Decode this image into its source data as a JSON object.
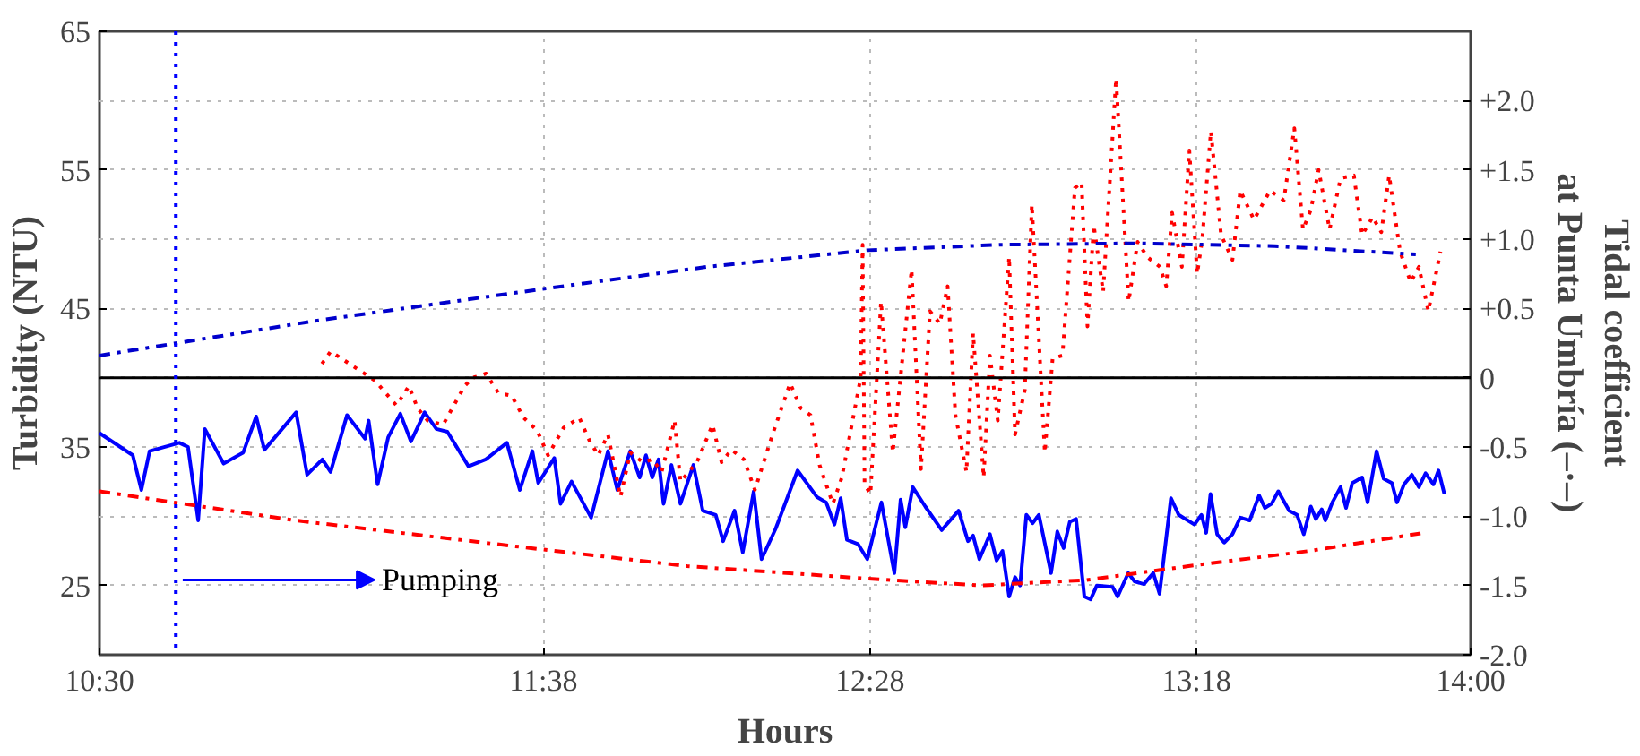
{
  "chart_data": {
    "type": "line",
    "xlabel": "Hours",
    "ylabel": "Turbidity (NTU)",
    "y2label": "Tidal coefficient\nat Punta Umbría (–·–)",
    "xlim": [
      10.5,
      14.0
    ],
    "xticks": [
      {
        "value": 10.5,
        "label": "10:30"
      },
      {
        "value": 11.6333,
        "label": "11:38"
      },
      {
        "value": 12.4667,
        "label": "12:28"
      },
      {
        "value": 13.3,
        "label": "13:18"
      },
      {
        "value": 14.0,
        "label": "14:00"
      }
    ],
    "ylim": [
      20,
      65
    ],
    "yticks": [
      25,
      35,
      45,
      55,
      65
    ],
    "y2lim": [
      -2.0,
      2.5
    ],
    "y2ticks": [
      {
        "value": 2.0,
        "label": "+2.0"
      },
      {
        "value": 1.5,
        "label": "+1.5"
      },
      {
        "value": 1.0,
        "label": "+1.0"
      },
      {
        "value": 0.5,
        "label": "+0.5"
      },
      0,
      -0.5,
      {
        "value": -1.0,
        "label": "-1.0"
      },
      -1.5,
      {
        "value": -2.0,
        "label": "-2.0"
      }
    ],
    "grid": true,
    "ref_lines": [
      {
        "axis": "y2",
        "value": 0,
        "color": "#000000",
        "line_style": "solid"
      },
      {
        "axis": "x",
        "value": 10.695,
        "label": "Pumping",
        "color": "#0000ff",
        "line_style": "dotted"
      }
    ],
    "series": [
      {
        "color": "#0000ff",
        "line_style": "solid",
        "x": [
          10.5,
          10.585,
          10.607,
          10.628,
          10.704,
          10.726,
          10.752,
          10.769,
          10.817,
          10.867,
          10.9,
          10.921,
          11.002,
          11.03,
          11.069,
          11.09,
          11.132,
          11.178,
          11.187,
          11.21,
          11.237,
          11.268,
          11.295,
          11.33,
          11.36,
          11.388,
          11.442,
          11.486,
          11.54,
          11.573,
          11.605,
          11.62,
          11.661,
          11.677,
          11.705,
          11.755,
          11.798,
          11.822,
          11.855,
          11.879,
          11.895,
          11.911,
          11.927,
          11.94,
          11.96,
          11.983,
          12.016,
          12.04,
          12.073,
          12.092,
          12.121,
          12.142,
          12.17,
          12.19,
          12.226,
          12.282,
          12.331,
          12.355,
          12.376,
          12.392,
          12.408,
          12.436,
          12.46,
          12.496,
          12.529,
          12.545,
          12.557,
          12.576,
          12.608,
          12.65,
          12.693,
          12.717,
          12.73,
          12.746,
          12.773,
          12.79,
          12.805,
          12.822,
          12.837,
          12.85,
          12.866,
          12.882,
          12.898,
          12.929,
          12.945,
          12.961,
          12.977,
          12.993,
          13.014,
          13.03,
          13.046,
          13.086,
          13.099,
          13.126,
          13.142,
          13.166,
          13.19,
          13.206,
          13.235,
          13.255,
          13.295,
          13.313,
          13.325,
          13.336,
          13.353,
          13.371,
          13.392,
          13.412,
          13.436,
          13.46,
          13.475,
          13.492,
          13.509,
          13.537,
          13.557,
          13.574,
          13.592,
          13.605,
          13.62,
          13.629,
          13.647,
          13.668,
          13.682,
          13.698,
          13.723,
          13.737,
          13.76,
          13.778,
          13.799,
          13.812,
          13.83,
          13.85,
          13.868,
          13.885,
          13.905,
          13.918,
          13.933
        ],
        "values": [
          36.0,
          34.4,
          31.9,
          34.7,
          35.3,
          35.0,
          29.7,
          36.3,
          33.8,
          34.6,
          37.2,
          34.8,
          37.5,
          33.0,
          34.1,
          33.2,
          37.3,
          35.6,
          36.9,
          32.3,
          35.7,
          37.4,
          35.4,
          37.5,
          36.3,
          36.1,
          33.6,
          34.1,
          35.3,
          31.9,
          34.7,
          32.4,
          34.2,
          30.9,
          32.5,
          29.9,
          34.7,
          31.9,
          34.7,
          32.8,
          34.4,
          32.8,
          34.1,
          30.9,
          33.7,
          30.9,
          33.7,
          30.4,
          30.1,
          28.2,
          30.4,
          27.4,
          31.8,
          26.9,
          29.1,
          33.3,
          31.4,
          31.0,
          29.4,
          31.3,
          28.3,
          28.0,
          26.9,
          31.0,
          25.9,
          31.2,
          29.2,
          32.1,
          30.7,
          29.0,
          30.4,
          28.2,
          28.6,
          26.9,
          28.7,
          26.8,
          27.5,
          24.2,
          25.6,
          25.0,
          30.1,
          29.5,
          30.1,
          25.9,
          28.9,
          27.7,
          29.6,
          29.8,
          24.2,
          24.0,
          25.0,
          24.9,
          24.2,
          25.9,
          25.3,
          25.1,
          25.9,
          24.4,
          31.3,
          30.1,
          29.4,
          30.1,
          28.8,
          31.6,
          28.7,
          28.1,
          28.7,
          29.9,
          29.7,
          31.5,
          30.6,
          30.9,
          31.8,
          30.4,
          30.1,
          28.7,
          30.7,
          29.8,
          30.5,
          29.7,
          31.0,
          32.1,
          30.6,
          32.4,
          32.8,
          31.0,
          34.7,
          32.7,
          32.4,
          31.0,
          32.3,
          33.0,
          32.1,
          33.1,
          32.3,
          33.3,
          31.6
        ]
      },
      {
        "color": "#ff0000",
        "line_style": "dotted",
        "x": [
          11.068,
          11.09,
          11.203,
          11.258,
          11.29,
          11.312,
          11.338,
          11.377,
          11.432,
          11.453,
          11.487,
          11.518,
          11.552,
          11.583,
          11.617,
          11.645,
          11.685,
          11.725,
          11.75,
          11.773,
          11.798,
          11.83,
          11.855,
          11.887,
          11.912,
          11.935,
          11.968,
          11.983,
          12.025,
          12.065,
          12.088,
          12.113,
          12.145,
          12.173,
          12.218,
          12.263,
          12.29,
          12.315,
          12.338,
          12.372,
          12.395,
          12.443,
          12.448,
          12.453,
          12.468,
          12.495,
          12.525,
          12.573,
          12.597,
          12.62,
          12.645,
          12.665,
          12.685,
          12.713,
          12.73,
          12.757,
          12.773,
          12.793,
          12.822,
          12.837,
          12.862,
          12.88,
          12.913,
          12.933,
          12.958,
          12.99,
          13.007,
          13.022,
          13.038,
          13.062,
          13.095,
          13.127,
          13.15,
          13.175,
          13.207,
          13.223,
          13.238,
          13.263,
          13.282,
          13.302,
          13.315,
          13.337,
          13.363,
          13.392,
          13.412,
          13.447,
          13.488,
          13.523,
          13.55,
          13.572,
          13.592,
          13.612,
          13.64,
          13.668,
          13.702,
          13.723,
          13.75,
          13.772,
          13.792,
          13.82,
          13.847,
          13.868,
          13.892,
          13.923
        ],
        "values": [
          41.0,
          41.9,
          39.8,
          38.0,
          39.4,
          37.8,
          36.9,
          36.6,
          39.4,
          40.0,
          40.3,
          38.9,
          38.7,
          37.1,
          36.2,
          34.4,
          36.4,
          37.1,
          35.5,
          34.4,
          35.9,
          31.4,
          34.6,
          33.9,
          34.1,
          33.2,
          36.9,
          32.5,
          33.9,
          36.6,
          33.9,
          34.8,
          34.1,
          31.9,
          35.9,
          39.6,
          37.8,
          37.3,
          33.7,
          30.9,
          32.8,
          40.0,
          49.6,
          32.3,
          31.6,
          45.5,
          34.6,
          47.8,
          33.4,
          44.8,
          43.9,
          46.6,
          37.3,
          33.2,
          43.2,
          32.8,
          41.6,
          36.9,
          48.7,
          35.9,
          39.1,
          52.5,
          34.6,
          41.4,
          41.6,
          53.7,
          54.1,
          43.7,
          51.0,
          46.2,
          61.6,
          45.5,
          49.8,
          48.7,
          48.0,
          46.6,
          51.9,
          48.0,
          56.4,
          47.5,
          50.0,
          57.8,
          50.3,
          48.5,
          53.5,
          51.4,
          53.5,
          52.8,
          58.0,
          50.7,
          52.1,
          55.0,
          50.7,
          54.4,
          54.6,
          50.3,
          51.6,
          50.5,
          54.6,
          49.1,
          46.9,
          48.0,
          44.8,
          49.1
        ]
      },
      {
        "color": "#0000cc",
        "line_style": "dashdot",
        "axis": "y2",
        "x": [
          10.5,
          11.05,
          11.63,
          12.05,
          12.46,
          12.8,
          13.15,
          13.5,
          13.86
        ],
        "values": [
          0.16,
          0.41,
          0.64,
          0.8,
          0.92,
          0.96,
          0.97,
          0.95,
          0.89
        ]
      },
      {
        "color": "#ff0000",
        "line_style": "dashdot",
        "axis": "y2",
        "x": [
          10.5,
          10.69,
          11.0,
          11.57,
          12.0,
          12.46,
          12.75,
          13.02,
          13.28,
          13.59,
          13.88
        ],
        "values": [
          -0.82,
          -0.9,
          -1.03,
          -1.22,
          -1.36,
          -1.45,
          -1.5,
          -1.46,
          -1.36,
          -1.25,
          -1.12
        ]
      }
    ]
  }
}
